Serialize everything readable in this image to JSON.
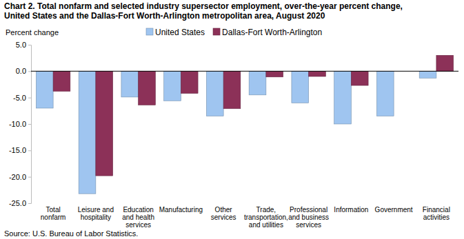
{
  "chart_data": {
    "type": "bar",
    "title": "Chart 2. Total nonfarm and selected industry supersector employment, over-the-year percent change,\nUnited States and the Dallas-Fort Worth-Arlington metropolitan area, August 2020",
    "y_label": "Percent change",
    "source": "Source: U.S. Bureau of Labor Statistics.",
    "categories": [
      "Total\nnonfarm",
      "Leisure and\nhospitality",
      "Education\nand health\nservices",
      "Manufacturing",
      "Other\nservices",
      "Trade,\ntransportation,\nand utilities",
      "Professional\nand business\nservices",
      "Information",
      "Government",
      "Financial\nactivities"
    ],
    "series": [
      {
        "name": "United States",
        "color": "#9fc5f0",
        "values": [
          -7.0,
          -23.2,
          -4.9,
          -5.6,
          -8.5,
          -4.5,
          -6.0,
          -10.0,
          -8.5,
          -1.3
        ]
      },
      {
        "name": "Dallas-Fort Worth-Arlington",
        "color": "#8c3158",
        "values": [
          -3.8,
          -19.8,
          -6.4,
          -4.2,
          -7.1,
          -1.1,
          -1.0,
          -2.7,
          0.0,
          3.0
        ]
      }
    ],
    "ylim": [
      -25,
      5
    ],
    "yticks": [
      {
        "value": 5,
        "label": "5.0"
      },
      {
        "value": 0,
        "label": "0.0"
      },
      {
        "value": -5,
        "label": "-5.0"
      },
      {
        "value": -10,
        "label": "-10.0"
      },
      {
        "value": -15,
        "label": "-15.0"
      },
      {
        "value": -20,
        "label": "-20.0"
      },
      {
        "value": -25,
        "label": "-25.0"
      }
    ],
    "grid": false,
    "legend": "top"
  }
}
